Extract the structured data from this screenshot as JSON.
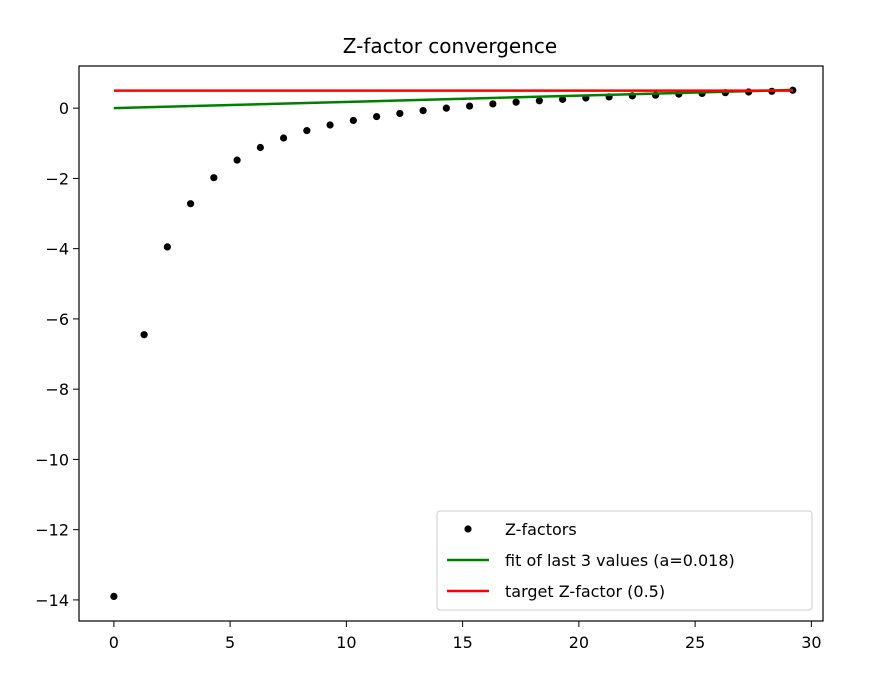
{
  "chart_data": {
    "type": "scatter",
    "title": "Z-factor convergence",
    "xlabel": "",
    "ylabel": "",
    "xlim": [
      -1.5,
      30.5
    ],
    "ylim": [
      -14.6,
      1.2
    ],
    "xticks": [
      0,
      5,
      10,
      15,
      20,
      25,
      30
    ],
    "yticks": [
      0,
      -2,
      -4,
      -6,
      -8,
      -10,
      -12,
      -14
    ],
    "ytick_labels": [
      "0",
      "−2",
      "−4",
      "−6",
      "−8",
      "−10",
      "−12",
      "−14"
    ],
    "grid": false,
    "legend_position": "lower-right",
    "series": [
      {
        "name": "Z-factors",
        "kind": "points",
        "color": "#000000",
        "x": [
          0,
          1.3,
          2.3,
          3.3,
          4.3,
          5.3,
          6.3,
          7.3,
          8.3,
          9.3,
          10.3,
          11.3,
          12.3,
          13.3,
          14.3,
          15.3,
          16.3,
          17.3,
          18.3,
          19.3,
          20.3,
          21.3,
          22.3,
          23.3,
          24.3,
          25.3,
          26.3,
          27.3,
          28.3,
          29.2
        ],
        "y": [
          -13.9,
          -6.45,
          -3.95,
          -2.72,
          -1.98,
          -1.48,
          -1.12,
          -0.85,
          -0.64,
          -0.48,
          -0.35,
          -0.24,
          -0.15,
          -0.07,
          0.0,
          0.06,
          0.12,
          0.17,
          0.21,
          0.25,
          0.29,
          0.32,
          0.35,
          0.37,
          0.4,
          0.42,
          0.44,
          0.46,
          0.48,
          0.51
        ]
      },
      {
        "name": "fit of last 3 values (a=0.018)",
        "kind": "line",
        "color": "#008000",
        "x": [
          0,
          29.2
        ],
        "y": [
          0.0,
          0.52
        ]
      },
      {
        "name": "target Z-factor (0.5)",
        "kind": "line",
        "color": "#ff0000",
        "x": [
          0,
          29.2
        ],
        "y": [
          0.5,
          0.5
        ]
      }
    ]
  }
}
